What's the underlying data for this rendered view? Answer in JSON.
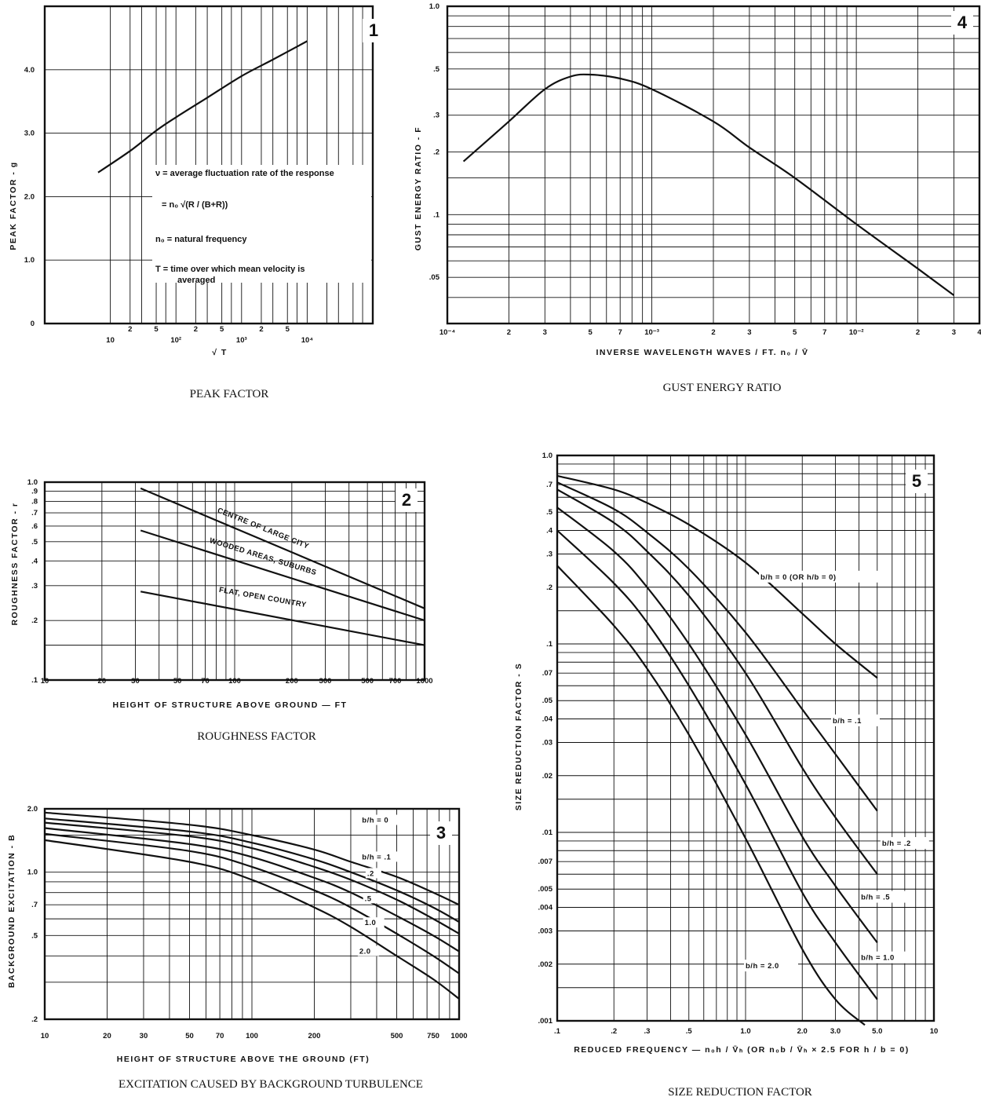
{
  "chart_data": [
    {
      "id": "peak",
      "type": "line",
      "panel_number": "1",
      "caption": "PEAK FACTOR",
      "xlabel": "√ T",
      "ylabel": "PEAK FACTOR - g",
      "xscale": "log",
      "xlim": [
        1,
        100000
      ],
      "ylim": [
        0,
        5.0
      ],
      "x_ticks": [
        {
          "v": 10,
          "t": "10"
        },
        {
          "v": 100,
          "t": "10²"
        },
        {
          "v": 1000,
          "t": "10³"
        },
        {
          "v": 10000,
          "t": "10⁴"
        }
      ],
      "x_minor_labels": [
        {
          "v": 20,
          "t": "2"
        },
        {
          "v": 50,
          "t": "5"
        },
        {
          "v": 200,
          "t": "2"
        },
        {
          "v": 500,
          "t": "5"
        },
        {
          "v": 2000,
          "t": "2"
        },
        {
          "v": 5000,
          "t": "5"
        }
      ],
      "y_ticks": [
        {
          "v": 0,
          "t": "0"
        },
        {
          "v": 1,
          "t": "1.0"
        },
        {
          "v": 2,
          "t": "2.0"
        },
        {
          "v": 3,
          "t": "3.0"
        },
        {
          "v": 4,
          "t": "4.0"
        }
      ],
      "x_grid": [
        10,
        20,
        30,
        50,
        70,
        100,
        200,
        300,
        500,
        700,
        1000,
        2000,
        3000,
        5000,
        7000,
        10000,
        20000,
        30000,
        50000,
        70000
      ],
      "y_grid": [
        1,
        2,
        3,
        4
      ],
      "series": [
        {
          "x": [
            6.5,
            20,
            50,
            100,
            300,
            1000,
            3000,
            10000
          ],
          "y": [
            2.38,
            2.72,
            3.04,
            3.25,
            3.56,
            3.9,
            4.16,
            4.45
          ]
        }
      ],
      "annotations": [
        "ν = average fluctuation rate of the response",
        "= n₀ √(R / (B+R))",
        "n₀ = natural frequency",
        "T = time over which mean velocity is",
        "averaged"
      ]
    },
    {
      "id": "gust",
      "type": "line",
      "panel_number": "4",
      "caption": "GUST ENERGY RATIO",
      "xlabel": "INVERSE WAVELENGTH     WAVES / FT.     n₀ / V̄",
      "ylabel": "GUST ENERGY RATIO - F",
      "xscale": "log",
      "yscale": "log",
      "xlim": [
        0.0001,
        0.04
      ],
      "ylim": [
        0.03,
        1.0
      ],
      "x_ticks": [
        {
          "v": 0.0001,
          "t": "10⁻⁴"
        },
        {
          "v": 0.0002,
          "t": "2"
        },
        {
          "v": 0.0003,
          "t": "3"
        },
        {
          "v": 0.0005,
          "t": "5"
        },
        {
          "v": 0.0007,
          "t": "7"
        },
        {
          "v": 0.001,
          "t": "10⁻³"
        },
        {
          "v": 0.002,
          "t": "2"
        },
        {
          "v": 0.003,
          "t": "3"
        },
        {
          "v": 0.005,
          "t": "5"
        },
        {
          "v": 0.007,
          "t": "7"
        },
        {
          "v": 0.01,
          "t": "10⁻²"
        },
        {
          "v": 0.02,
          "t": "2"
        },
        {
          "v": 0.03,
          "t": "3"
        },
        {
          "v": 0.04,
          "t": "4"
        }
      ],
      "y_ticks": [
        {
          "v": 1.0,
          "t": "1.0"
        },
        {
          "v": 0.5,
          "t": ".5"
        },
        {
          "v": 0.3,
          "t": ".3"
        },
        {
          "v": 0.2,
          "t": ".2"
        },
        {
          "v": 0.1,
          "t": ".1"
        },
        {
          "v": 0.05,
          "t": ".05"
        }
      ],
      "x_grid": [
        0.0002,
        0.0003,
        0.0004,
        0.0005,
        0.0006,
        0.0007,
        0.0008,
        0.0009,
        0.001,
        0.002,
        0.003,
        0.004,
        0.005,
        0.006,
        0.007,
        0.008,
        0.009,
        0.01,
        0.02,
        0.03
      ],
      "y_grid": [
        0.04,
        0.05,
        0.06,
        0.07,
        0.08,
        0.09,
        0.1,
        0.15,
        0.2,
        0.3,
        0.4,
        0.5,
        0.6,
        0.7,
        0.8,
        0.9
      ],
      "series": [
        {
          "x": [
            0.00012,
            0.0002,
            0.0003,
            0.0004,
            0.0005,
            0.0007,
            0.001,
            0.002,
            0.003,
            0.005,
            0.01,
            0.02,
            0.03
          ],
          "y": [
            0.18,
            0.28,
            0.4,
            0.46,
            0.47,
            0.45,
            0.4,
            0.28,
            0.21,
            0.15,
            0.09,
            0.055,
            0.041
          ]
        }
      ]
    },
    {
      "id": "rough",
      "type": "line",
      "panel_number": "2",
      "caption": "ROUGHNESS FACTOR",
      "xlabel": "HEIGHT OF STRUCTURE ABOVE GROUND — FT",
      "ylabel": "ROUGHNESS FACTOR - r",
      "xscale": "log",
      "yscale": "log",
      "xlim": [
        10,
        1000
      ],
      "ylim": [
        0.1,
        1.0
      ],
      "x_ticks": [
        {
          "v": 10,
          "t": "10"
        },
        {
          "v": 20,
          "t": "20"
        },
        {
          "v": 30,
          "t": "30"
        },
        {
          "v": 50,
          "t": "50"
        },
        {
          "v": 70,
          "t": "70"
        },
        {
          "v": 100,
          "t": "100"
        },
        {
          "v": 200,
          "t": "200"
        },
        {
          "v": 300,
          "t": "300"
        },
        {
          "v": 500,
          "t": "500"
        },
        {
          "v": 700,
          "t": "700"
        },
        {
          "v": 1000,
          "t": "1000"
        }
      ],
      "y_ticks": [
        {
          "v": 1.0,
          "t": "1.0"
        },
        {
          "v": 0.9,
          "t": ".9"
        },
        {
          "v": 0.8,
          "t": ".8"
        },
        {
          "v": 0.7,
          "t": ".7"
        },
        {
          "v": 0.6,
          "t": ".6"
        },
        {
          "v": 0.5,
          "t": ".5"
        },
        {
          "v": 0.4,
          "t": ".4"
        },
        {
          "v": 0.3,
          "t": ".3"
        },
        {
          "v": 0.2,
          "t": ".2"
        },
        {
          "v": 0.1,
          "t": ".1"
        }
      ],
      "x_grid": [
        20,
        30,
        40,
        50,
        60,
        70,
        80,
        90,
        100,
        200,
        300,
        400,
        500,
        600,
        700,
        800,
        900
      ],
      "y_grid": [
        0.15,
        0.2,
        0.3,
        0.4,
        0.5,
        0.6,
        0.7,
        0.8,
        0.9
      ],
      "series": [
        {
          "name": "CENTRE OF LARGE CITY",
          "x": [
            32,
            1000
          ],
          "y": [
            0.93,
            0.23
          ],
          "label_at": [
            140,
            0.57
          ],
          "label_angle": 22
        },
        {
          "name": "WOODED AREAS, SUBURBS",
          "x": [
            32,
            1000
          ],
          "y": [
            0.57,
            0.2
          ],
          "label_at": [
            140,
            0.41
          ],
          "label_angle": 17
        },
        {
          "name": "FLAT, OPEN COUNTRY",
          "x": [
            32,
            1000
          ],
          "y": [
            0.28,
            0.15
          ],
          "label_at": [
            140,
            0.255
          ],
          "label_angle": 10
        }
      ]
    },
    {
      "id": "bg",
      "type": "line",
      "panel_number": "3",
      "caption": "EXCITATION CAUSED BY BACKGROUND TURBULENCE",
      "xlabel": "HEIGHT OF STRUCTURE ABOVE THE GROUND (FT)",
      "ylabel": "BACKGROUND EXCITATION - B",
      "xscale": "log",
      "yscale": "log",
      "xlim": [
        10,
        1000
      ],
      "ylim": [
        0.2,
        2.0
      ],
      "x_ticks": [
        {
          "v": 10,
          "t": "10"
        },
        {
          "v": 20,
          "t": "20"
        },
        {
          "v": 30,
          "t": "30"
        },
        {
          "v": 50,
          "t": "50"
        },
        {
          "v": 70,
          "t": "70"
        },
        {
          "v": 100,
          "t": "100"
        },
        {
          "v": 200,
          "t": "200"
        },
        {
          "v": 500,
          "t": "500"
        },
        {
          "v": 750,
          "t": "750"
        },
        {
          "v": 1000,
          "t": "1000"
        }
      ],
      "y_ticks": [
        {
          "v": 2.0,
          "t": "2.0"
        },
        {
          "v": 1.0,
          "t": "1.0"
        },
        {
          "v": 0.7,
          "t": ".7"
        },
        {
          "v": 0.5,
          "t": ".5"
        },
        {
          "v": 0.2,
          "t": ".2"
        }
      ],
      "x_grid": [
        20,
        30,
        40,
        50,
        60,
        70,
        80,
        90,
        100,
        200,
        300,
        400,
        500,
        600,
        700,
        800,
        900
      ],
      "y_grid": [
        0.3,
        0.4,
        0.5,
        0.6,
        0.7,
        0.8,
        0.9,
        1.0,
        1.5
      ],
      "series": [
        {
          "name": "b/h = 0",
          "x": [
            10,
            50,
            100,
            200,
            300,
            500,
            750,
            1000
          ],
          "y": [
            1.92,
            1.68,
            1.5,
            1.28,
            1.12,
            0.95,
            0.8,
            0.7
          ],
          "label": "b/h = 0",
          "label_at": [
            340,
            1.72
          ]
        },
        {
          "name": "b/h = .1",
          "x": [
            10,
            50,
            100,
            200,
            300,
            500,
            750,
            1000
          ],
          "y": [
            1.8,
            1.56,
            1.38,
            1.15,
            1.0,
            0.82,
            0.68,
            0.58
          ],
          "label": "b/h = .1",
          "label_at": [
            340,
            1.15
          ]
        },
        {
          "name": "b/h = .2",
          "x": [
            10,
            50,
            100,
            200,
            300,
            500,
            750,
            1000
          ],
          "y": [
            1.72,
            1.48,
            1.3,
            1.06,
            0.92,
            0.74,
            0.6,
            0.51
          ],
          "label": ".2",
          "label_at": [
            360,
            0.96
          ]
        },
        {
          "name": "b/h = .5",
          "x": [
            10,
            50,
            100,
            200,
            300,
            500,
            750,
            1000
          ],
          "y": [
            1.62,
            1.36,
            1.18,
            0.94,
            0.8,
            0.62,
            0.5,
            0.42
          ],
          "label": ".5",
          "label_at": [
            350,
            0.73
          ]
        },
        {
          "name": "b/h = 1.0",
          "x": [
            10,
            50,
            100,
            200,
            300,
            500,
            750,
            1000
          ],
          "y": [
            1.52,
            1.26,
            1.06,
            0.82,
            0.68,
            0.51,
            0.4,
            0.33
          ],
          "label": "1.0",
          "label_at": [
            350,
            0.56
          ]
        },
        {
          "name": "b/h = 2.0",
          "x": [
            10,
            50,
            100,
            200,
            300,
            500,
            750,
            1000
          ],
          "y": [
            1.42,
            1.12,
            0.92,
            0.68,
            0.55,
            0.4,
            0.31,
            0.25
          ],
          "label": "2.0",
          "label_at": [
            330,
            0.41
          ]
        }
      ]
    },
    {
      "id": "size",
      "type": "line",
      "panel_number": "5",
      "caption": "SIZE REDUCTION FACTOR",
      "xlabel": "REDUCED FREQUENCY  —  n₀h / V̄ₕ    (OR n₀b / V̄ₕ × 2.5 FOR h / b = 0)",
      "ylabel": "SIZE REDUCTION FACTOR - S",
      "xscale": "log",
      "yscale": "log",
      "xlim": [
        0.1,
        10
      ],
      "ylim": [
        0.001,
        1.0
      ],
      "x_ticks": [
        {
          "v": 0.1,
          "t": ".1"
        },
        {
          "v": 0.2,
          "t": ".2"
        },
        {
          "v": 0.3,
          "t": ".3"
        },
        {
          "v": 0.5,
          "t": ".5"
        },
        {
          "v": 1.0,
          "t": "1.0"
        },
        {
          "v": 2.0,
          "t": "2.0"
        },
        {
          "v": 3.0,
          "t": "3.0"
        },
        {
          "v": 5.0,
          "t": "5.0"
        },
        {
          "v": 10,
          "t": "10"
        }
      ],
      "y_ticks": [
        {
          "v": 1.0,
          "t": "1.0"
        },
        {
          "v": 0.7,
          "t": ".7"
        },
        {
          "v": 0.5,
          "t": ".5"
        },
        {
          "v": 0.4,
          "t": ".4"
        },
        {
          "v": 0.3,
          "t": ".3"
        },
        {
          "v": 0.2,
          "t": ".2"
        },
        {
          "v": 0.1,
          "t": ".1"
        },
        {
          "v": 0.07,
          "t": ".07"
        },
        {
          "v": 0.05,
          "t": ".05"
        },
        {
          "v": 0.04,
          "t": ".04"
        },
        {
          "v": 0.03,
          "t": ".03"
        },
        {
          "v": 0.02,
          "t": ".02"
        },
        {
          "v": 0.01,
          "t": ".01"
        },
        {
          "v": 0.007,
          "t": ".007"
        },
        {
          "v": 0.005,
          "t": ".005"
        },
        {
          "v": 0.004,
          "t": ".004"
        },
        {
          "v": 0.003,
          "t": ".003"
        },
        {
          "v": 0.002,
          "t": ".002"
        },
        {
          "v": 0.001,
          "t": ".001"
        }
      ],
      "x_grid": [
        0.2,
        0.3,
        0.4,
        0.5,
        0.6,
        0.7,
        0.8,
        0.9,
        1,
        2,
        3,
        4,
        5,
        6,
        7,
        8,
        9
      ],
      "y_grid": [
        0.0015,
        0.002,
        0.003,
        0.004,
        0.005,
        0.006,
        0.007,
        0.008,
        0.009,
        0.01,
        0.015,
        0.02,
        0.03,
        0.04,
        0.05,
        0.06,
        0.07,
        0.08,
        0.09,
        0.1,
        0.15,
        0.2,
        0.3,
        0.4,
        0.5,
        0.6,
        0.7,
        0.8,
        0.9
      ],
      "series": [
        {
          "name": "b/h = 0",
          "x": [
            0.1,
            0.2,
            0.3,
            0.5,
            1.0,
            2.0,
            3.0,
            5.0
          ],
          "y": [
            0.78,
            0.66,
            0.56,
            0.43,
            0.27,
            0.145,
            0.1,
            0.066
          ]
        },
        {
          "name": "b/h = .1",
          "x": [
            0.1,
            0.2,
            0.3,
            0.5,
            1.0,
            2.0,
            3.0,
            5.0
          ],
          "y": [
            0.72,
            0.52,
            0.39,
            0.25,
            0.115,
            0.045,
            0.026,
            0.013
          ]
        },
        {
          "name": "b/h = .2",
          "x": [
            0.1,
            0.2,
            0.3,
            0.5,
            1.0,
            2.0,
            3.0,
            5.0
          ],
          "y": [
            0.66,
            0.44,
            0.31,
            0.18,
            0.07,
            0.022,
            0.012,
            0.006
          ]
        },
        {
          "name": "b/h = .5",
          "x": [
            0.1,
            0.2,
            0.3,
            0.5,
            1.0,
            2.0,
            3.0,
            5.0
          ],
          "y": [
            0.53,
            0.31,
            0.2,
            0.1,
            0.033,
            0.0095,
            0.0052,
            0.0026
          ]
        },
        {
          "name": "b/h = 1.0",
          "x": [
            0.1,
            0.2,
            0.3,
            0.5,
            1.0,
            2.0,
            3.0,
            5.0
          ],
          "y": [
            0.4,
            0.21,
            0.13,
            0.06,
            0.018,
            0.0048,
            0.0026,
            0.0013
          ]
        },
        {
          "name": "b/h = 2.0",
          "x": [
            0.1,
            0.2,
            0.3,
            0.5,
            1.0,
            2.0,
            3.0,
            4.3
          ],
          "y": [
            0.26,
            0.125,
            0.074,
            0.033,
            0.0093,
            0.0024,
            0.0013,
            0.00095
          ]
        }
      ],
      "labels": [
        {
          "text": "b/h = 0   (OR h/b = 0)",
          "at": [
            1.2,
            0.22
          ]
        },
        {
          "text": "b/h = .1",
          "at": [
            2.9,
            0.038
          ]
        },
        {
          "text": "b/h = .2",
          "at": [
            5.3,
            0.0085
          ]
        },
        {
          "text": "b/h = .5",
          "at": [
            4.1,
            0.0044
          ]
        },
        {
          "text": "b/h = 1.0",
          "at": [
            4.1,
            0.0021
          ]
        },
        {
          "text": "b/h = 2.0",
          "at": [
            1.0,
            0.0019
          ]
        }
      ]
    }
  ]
}
